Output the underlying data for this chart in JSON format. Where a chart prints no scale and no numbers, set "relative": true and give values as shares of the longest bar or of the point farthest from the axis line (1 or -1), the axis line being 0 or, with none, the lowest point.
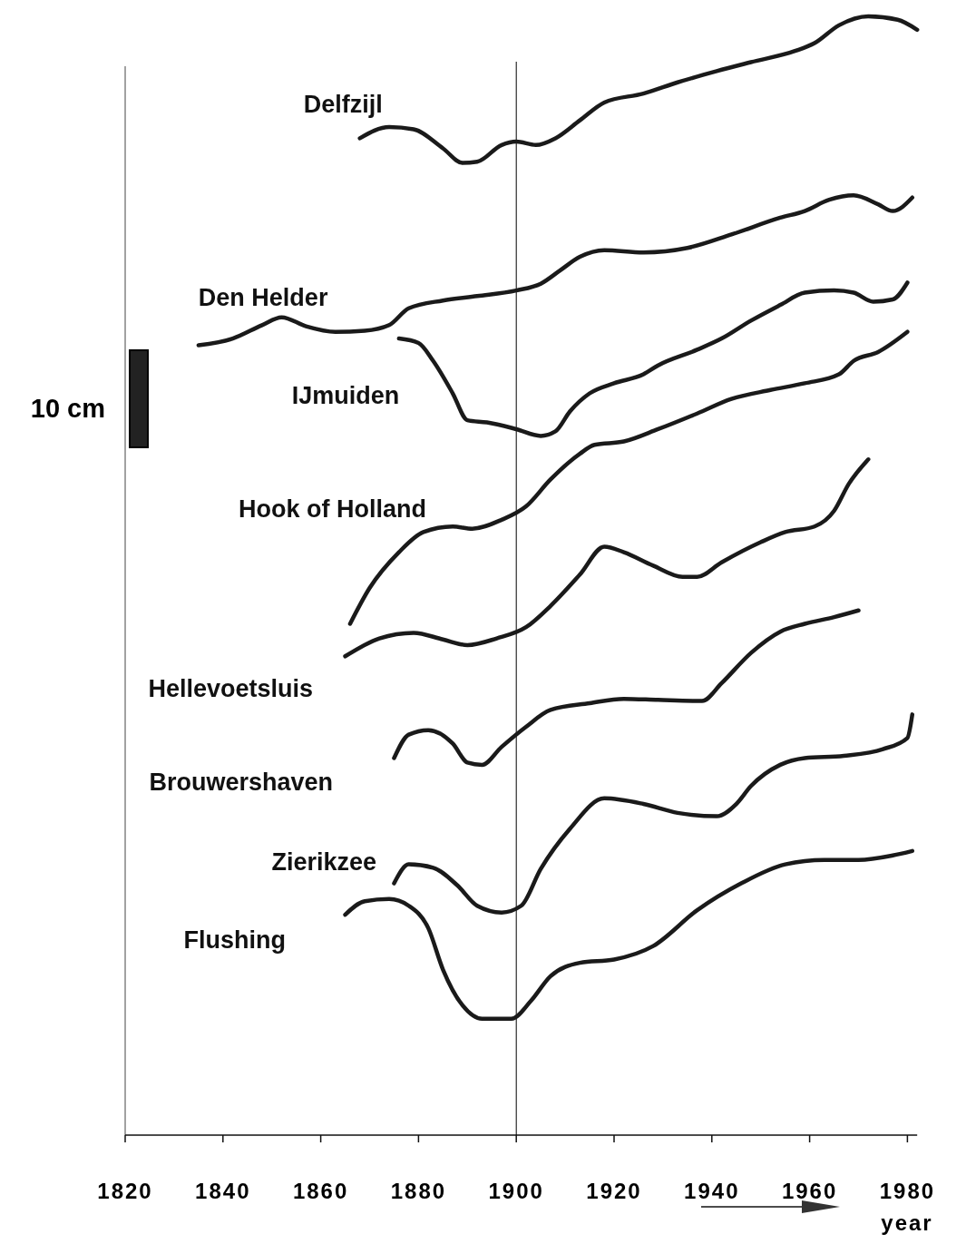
{
  "chart_data": {
    "type": "line",
    "relative": true,
    "xlabel": "year",
    "xlim": [
      1820,
      1982
    ],
    "xticks": [
      1820,
      1840,
      1860,
      1880,
      1900,
      1920,
      1940,
      1960,
      1980
    ],
    "tick_labels": "x",
    "grid": false,
    "legend": false,
    "marker": "none",
    "line_style": "solid",
    "annotations": [
      "10 cm"
    ],
    "ref_lines": [
      {
        "axis": "x",
        "value": 1900,
        "color": "#000000"
      }
    ],
    "series": [
      {
        "name": "Delfzijl",
        "color": "#1a1a1a",
        "x": [
          1868,
          1874,
          1879,
          1885,
          1889,
          1892,
          1897,
          1900,
          1904,
          1908,
          1913,
          1918,
          1926,
          1933,
          1941,
          1948,
          1957,
          1961,
          1966,
          1972,
          1978,
          1982
        ],
        "values": [
          0.891,
          0.901,
          0.899,
          0.882,
          0.869,
          0.87,
          0.885,
          0.888,
          0.885,
          0.891,
          0.907,
          0.923,
          0.931,
          0.941,
          0.951,
          0.959,
          0.969,
          0.976,
          0.992,
          1.0,
          0.997,
          0.988
        ]
      },
      {
        "name": "Den Helder",
        "color": "#1a1a1a",
        "x": [
          1835,
          1842,
          1848,
          1852,
          1857,
          1863,
          1869,
          1874,
          1878,
          1885,
          1892,
          1900,
          1905,
          1909,
          1913,
          1918,
          1926,
          1935,
          1944,
          1954,
          1959,
          1964,
          1969,
          1974,
          1977,
          1981
        ],
        "values": [
          0.706,
          0.712,
          0.724,
          0.731,
          0.723,
          0.718,
          0.719,
          0.724,
          0.739,
          0.746,
          0.75,
          0.755,
          0.761,
          0.773,
          0.785,
          0.791,
          0.789,
          0.793,
          0.805,
          0.82,
          0.826,
          0.836,
          0.84,
          0.832,
          0.826,
          0.838
        ]
      },
      {
        "name": "IJmuiden",
        "color": "#1a1a1a",
        "x": [
          1876,
          1880,
          1883,
          1887,
          1890,
          1894,
          1900,
          1905,
          1908,
          1911,
          1915,
          1920,
          1926,
          1929,
          1937,
          1942,
          1948,
          1954,
          1959,
          1965,
          1969,
          1973,
          1977,
          1980
        ],
        "values": [
          0.712,
          0.708,
          0.692,
          0.663,
          0.639,
          0.637,
          0.631,
          0.625,
          0.629,
          0.647,
          0.663,
          0.672,
          0.68,
          0.688,
          0.702,
          0.712,
          0.728,
          0.742,
          0.753,
          0.755,
          0.753,
          0.745,
          0.747,
          0.762
        ]
      },
      {
        "name": "Hook of Holland",
        "color": "#1a1a1a",
        "x": [
          1866,
          1870,
          1876,
          1881,
          1887,
          1891,
          1897,
          1902,
          1907,
          1913,
          1916,
          1922,
          1929,
          1937,
          1944,
          1952,
          1959,
          1966,
          1969,
          1974,
          1980
        ],
        "values": [
          0.457,
          0.489,
          0.521,
          0.539,
          0.544,
          0.542,
          0.55,
          0.562,
          0.586,
          0.609,
          0.617,
          0.62,
          0.631,
          0.645,
          0.658,
          0.666,
          0.672,
          0.68,
          0.692,
          0.7,
          0.718
        ]
      },
      {
        "name": "Hellevoetsluis",
        "color": "#1a1a1a",
        "x": [
          1865,
          1872,
          1879,
          1885,
          1890,
          1896,
          1902,
          1907,
          1913,
          1918,
          1922,
          1928,
          1934,
          1937,
          1942,
          1950,
          1955,
          1961,
          1965,
          1968,
          1972
        ],
        "values": [
          0.428,
          0.444,
          0.449,
          0.443,
          0.438,
          0.444,
          0.454,
          0.473,
          0.501,
          0.526,
          0.521,
          0.509,
          0.499,
          0.499,
          0.512,
          0.53,
          0.539,
          0.544,
          0.558,
          0.582,
          0.604
        ]
      },
      {
        "name": "Brouwershaven",
        "color": "#1a1a1a",
        "x": [
          1875,
          1878,
          1882,
          1887,
          1890,
          1893,
          1897,
          1902,
          1907,
          1915,
          1922,
          1929,
          1938,
          1942,
          1948,
          1954,
          1959,
          1965,
          1970
        ],
        "values": [
          0.337,
          0.358,
          0.362,
          0.35,
          0.333,
          0.331,
          0.347,
          0.365,
          0.38,
          0.386,
          0.39,
          0.389,
          0.388,
          0.404,
          0.431,
          0.45,
          0.457,
          0.463,
          0.469
        ]
      },
      {
        "name": "Zierikzee",
        "color": "#1a1a1a",
        "x": [
          1875,
          1878,
          1883,
          1888,
          1892,
          1897,
          1901,
          1905,
          1911,
          1918,
          1926,
          1933,
          1941,
          1945,
          1948,
          1954,
          1959,
          1967,
          1975,
          1980,
          1981
        ],
        "values": [
          0.225,
          0.242,
          0.239,
          0.223,
          0.205,
          0.199,
          0.205,
          0.238,
          0.274,
          0.301,
          0.296,
          0.288,
          0.285,
          0.296,
          0.312,
          0.331,
          0.337,
          0.339,
          0.345,
          0.355,
          0.376
        ]
      },
      {
        "name": "Flushing",
        "color": "#1a1a1a",
        "x": [
          1865,
          1869,
          1874,
          1878,
          1882,
          1885,
          1889,
          1893,
          1899,
          1903,
          1907,
          1913,
          1920,
          1928,
          1937,
          1946,
          1955,
          1963,
          1970,
          1977,
          1981
        ],
        "values": [
          0.197,
          0.209,
          0.211,
          0.205,
          0.185,
          0.148,
          0.116,
          0.104,
          0.104,
          0.12,
          0.142,
          0.154,
          0.157,
          0.169,
          0.201,
          0.225,
          0.242,
          0.246,
          0.246,
          0.25,
          0.254
        ]
      }
    ]
  }
}
